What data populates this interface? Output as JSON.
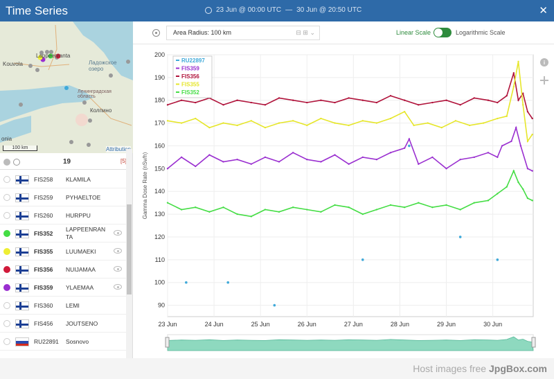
{
  "window": {
    "title": "Time Series",
    "date_start": "23 Jun @ 00:00 UTC",
    "date_sep": "—",
    "date_end": "30 Jun @ 20:50 UTC",
    "close_label": "✕"
  },
  "map": {
    "labels": [
      "Kouvola",
      "Lappeenranta",
      "Ладожское озеро",
      "Ленинградская область",
      "Колпино",
      "onia"
    ],
    "scale": "100 km",
    "attribution": "Attribution"
  },
  "list_header": {
    "count": "19",
    "selected": "[5]"
  },
  "stations": [
    {
      "code": "FIS258",
      "name": "KLAMILA",
      "flag": "fi",
      "color": null,
      "bold": false,
      "eye": false
    },
    {
      "code": "FIS259",
      "name": "PYHAELTOE",
      "flag": "fi",
      "color": null,
      "bold": false,
      "eye": false
    },
    {
      "code": "FIS260",
      "name": "HURPPU",
      "flag": "fi",
      "color": null,
      "bold": false,
      "eye": false
    },
    {
      "code": "FIS352",
      "name": "LAPPEENRANTA",
      "flag": "fi",
      "color": "#44dd44",
      "bold": true,
      "eye": true
    },
    {
      "code": "FIS355",
      "name": "LUUMAEKI",
      "flag": "fi",
      "color": "#eeee33",
      "bold": true,
      "eye": true
    },
    {
      "code": "FIS356",
      "name": "NUIJAMAA",
      "flag": "fi",
      "color": "#d11a3a",
      "bold": true,
      "eye": true
    },
    {
      "code": "FIS359",
      "name": "YLAEMAA",
      "flag": "fi",
      "color": "#9a2fd0",
      "bold": true,
      "eye": true
    },
    {
      "code": "FIS360",
      "name": "LEMI",
      "flag": "fi",
      "color": null,
      "bold": false,
      "eye": false
    },
    {
      "code": "FIS456",
      "name": "JOUTSENO",
      "flag": "fi",
      "color": null,
      "bold": false,
      "eye": false
    },
    {
      "code": "RU22891",
      "name": "Sosnovo",
      "flag": "ru",
      "color": null,
      "bold": false,
      "eye": false
    }
  ],
  "toolbar": {
    "radius_label": "Area Radius: 100 km",
    "linear_label": "Linear Scale",
    "log_label": "Logarithmic Scale",
    "log_scale": false
  },
  "footer": {
    "host_text": "Host images free",
    "host_brand": "JpgBox.com"
  },
  "chart_data": {
    "type": "line",
    "ylabel": "Gamma Dose Rate (nSv/h)",
    "ylim": [
      85,
      200
    ],
    "yticks": [
      90,
      100,
      110,
      120,
      130,
      140,
      150,
      160,
      170,
      180,
      190,
      200
    ],
    "xlim": [
      23.0,
      30.87
    ],
    "xticks": [
      23,
      24,
      25,
      26,
      27,
      28,
      29,
      30
    ],
    "xtick_labels": [
      "23 Jun",
      "24 Jun",
      "25 Jun",
      "26 Jun",
      "27 Jun",
      "28 Jun",
      "29 Jun",
      "30 Jun"
    ],
    "grid": true,
    "legend_position": "top-left",
    "series": [
      {
        "name": "RU22897",
        "color": "#3fa9d9",
        "style": "dots",
        "x": [
          23.4,
          24.3,
          25.3,
          27.2,
          28.2,
          29.3,
          30.1
        ],
        "y": [
          100,
          100,
          90,
          110,
          160,
          120,
          110
        ]
      },
      {
        "name": "FIS359",
        "color": "#9a2fd0",
        "style": "line",
        "x": [
          23.0,
          23.3,
          23.6,
          23.9,
          24.2,
          24.5,
          24.8,
          25.1,
          25.4,
          25.7,
          26.0,
          26.3,
          26.6,
          26.9,
          27.2,
          27.5,
          27.8,
          28.1,
          28.2,
          28.4,
          28.7,
          29.0,
          29.3,
          29.6,
          29.9,
          30.1,
          30.2,
          30.4,
          30.5,
          30.6,
          30.75,
          30.85
        ],
        "y": [
          150,
          155,
          151,
          156,
          153,
          154,
          152,
          155,
          153,
          157,
          154,
          153,
          156,
          152,
          155,
          154,
          157,
          159,
          163,
          152,
          155,
          150,
          154,
          155,
          157,
          155,
          160,
          162,
          168,
          160,
          150,
          149
        ]
      },
      {
        "name": "FIS356",
        "color": "#b0123a",
        "style": "line",
        "x": [
          23.0,
          23.3,
          23.6,
          23.9,
          24.2,
          24.5,
          24.8,
          25.1,
          25.4,
          25.7,
          26.0,
          26.3,
          26.6,
          26.9,
          27.2,
          27.5,
          27.8,
          28.1,
          28.4,
          28.7,
          29.0,
          29.3,
          29.6,
          29.9,
          30.1,
          30.3,
          30.45,
          30.55,
          30.65,
          30.75,
          30.85
        ],
        "y": [
          178,
          180,
          179,
          181,
          178,
          180,
          179,
          178,
          181,
          180,
          179,
          180,
          179,
          181,
          180,
          179,
          182,
          180,
          178,
          179,
          180,
          178,
          181,
          180,
          179,
          182,
          192,
          180,
          183,
          175,
          172
        ]
      },
      {
        "name": "FIS355",
        "color": "#e6e62a",
        "style": "line",
        "x": [
          23.0,
          23.3,
          23.6,
          23.9,
          24.2,
          24.5,
          24.8,
          25.1,
          25.4,
          25.7,
          26.0,
          26.3,
          26.6,
          26.9,
          27.2,
          27.5,
          27.8,
          28.1,
          28.3,
          28.6,
          28.9,
          29.2,
          29.5,
          29.8,
          30.1,
          30.3,
          30.45,
          30.55,
          30.65,
          30.75,
          30.85
        ],
        "y": [
          171,
          170,
          172,
          168,
          170,
          169,
          171,
          168,
          170,
          171,
          169,
          172,
          170,
          169,
          171,
          170,
          172,
          175,
          169,
          170,
          168,
          171,
          169,
          170,
          172,
          173,
          186,
          197,
          178,
          162,
          165
        ]
      },
      {
        "name": "FIS352",
        "color": "#44dd44",
        "style": "line",
        "x": [
          23.0,
          23.3,
          23.6,
          23.9,
          24.2,
          24.5,
          24.8,
          25.1,
          25.4,
          25.7,
          26.0,
          26.3,
          26.6,
          26.9,
          27.2,
          27.5,
          27.8,
          28.1,
          28.4,
          28.7,
          29.0,
          29.3,
          29.6,
          29.9,
          30.1,
          30.3,
          30.45,
          30.55,
          30.65,
          30.75,
          30.85
        ],
        "y": [
          135,
          132,
          133,
          131,
          133,
          130,
          129,
          132,
          131,
          133,
          132,
          131,
          134,
          133,
          130,
          132,
          134,
          133,
          135,
          133,
          134,
          132,
          135,
          136,
          139,
          142,
          149,
          144,
          141,
          137,
          136
        ]
      }
    ]
  }
}
